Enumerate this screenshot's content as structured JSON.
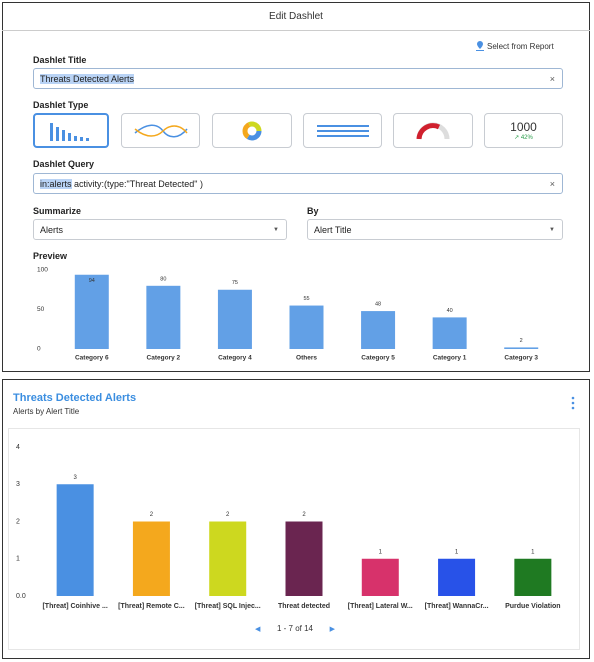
{
  "dialog": {
    "title": "Edit Dashlet",
    "select_from_report": "Select from Report",
    "dashlet_title_label": "Dashlet Title",
    "dashlet_title_value": "Threats Detected Alerts",
    "dashlet_type_label": "Dashlet Type",
    "metric_sample": {
      "value": "1000",
      "change": "↗ 42%"
    },
    "query_label": "Dashlet Query",
    "query_highlight": "in:alerts",
    "query_rest": " activity:(type:\"Threat Detected\" )",
    "summarize_label": "Summarize",
    "summarize_value": "Alerts",
    "by_label": "By",
    "by_value": "Alert Title",
    "preview_label": "Preview",
    "preview_chart": {
      "type": "bar",
      "categories": [
        "Category 6",
        "Category 2",
        "Category 4",
        "Others",
        "Category 5",
        "Category 1",
        "Category 3"
      ],
      "values": [
        94,
        80,
        75,
        55,
        48,
        40,
        2
      ],
      "color": "#62a0e6",
      "ylim": [
        0,
        100
      ],
      "yticks": [
        0,
        50,
        100
      ]
    }
  },
  "dashlet": {
    "title": "Threats Detected Alerts",
    "subtitle": "Alerts by Alert Title",
    "chart": {
      "type": "bar",
      "categories": [
        "[Threat] Coinhive ...",
        "[Threat] Remote C...",
        "[Threat] SQL Injec...",
        "Threat detected",
        "[Threat] Lateral W...",
        "[Threat] WannaCr...",
        "Purdue Violation"
      ],
      "values": [
        3,
        2,
        2,
        2,
        1,
        1,
        1
      ],
      "colors": [
        "#4a90e2",
        "#f4a81d",
        "#cdd81f",
        "#6a2550",
        "#d7326b",
        "#2852e8",
        "#1f7a22"
      ],
      "ylim": [
        0,
        4
      ],
      "yticks": [
        {
          "value": 0,
          "label": "0.0"
        },
        1,
        2,
        3,
        4
      ]
    },
    "pagination": "1 - 7 of 14"
  }
}
